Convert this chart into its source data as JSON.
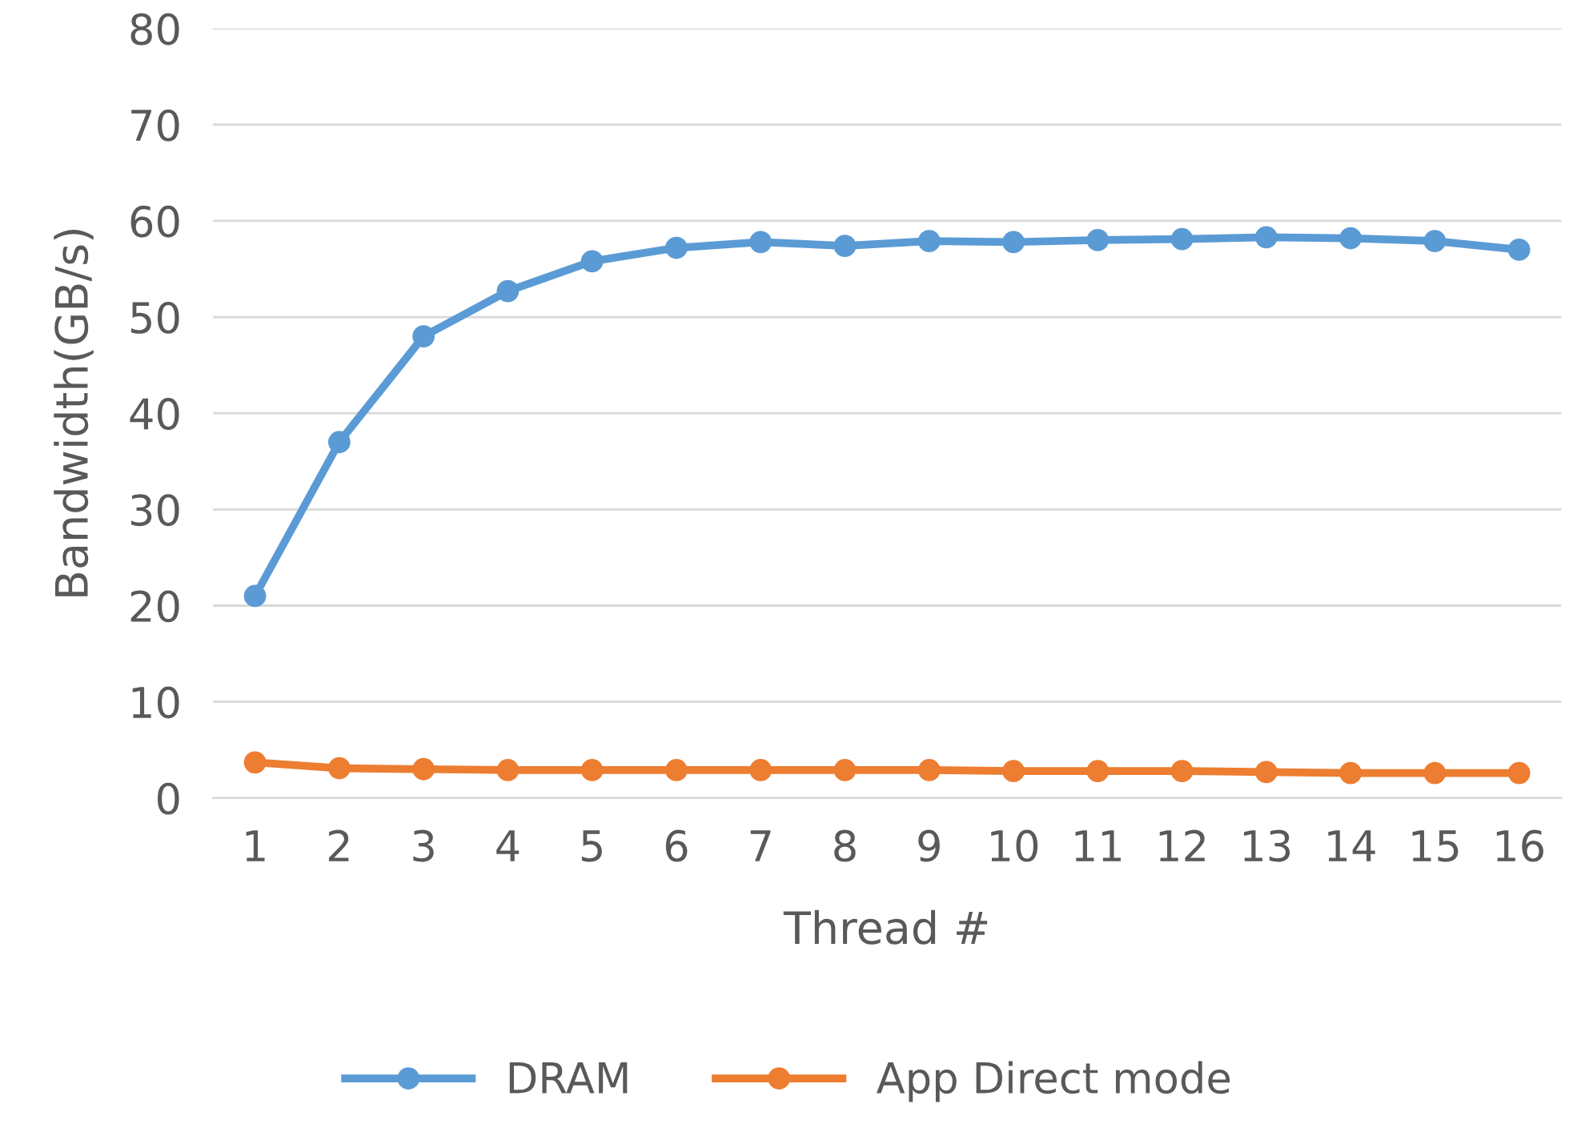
{
  "chart_data": {
    "type": "line",
    "xlabel": "Thread #",
    "ylabel": "Bandwidth(GB/s)",
    "categories": [
      "1",
      "2",
      "3",
      "4",
      "5",
      "6",
      "7",
      "8",
      "9",
      "10",
      "11",
      "12",
      "13",
      "14",
      "15",
      "16"
    ],
    "series": [
      {
        "name": "DRAM",
        "color": "#5b9bd5",
        "values": [
          21,
          37,
          48,
          52.7,
          55.8,
          57.2,
          57.8,
          57.4,
          57.9,
          57.8,
          58.0,
          58.1,
          58.3,
          58.2,
          57.9,
          57.0
        ]
      },
      {
        "name": "App Direct mode",
        "color": "#ed7d31",
        "values": [
          3.7,
          3.1,
          3.0,
          2.9,
          2.9,
          2.9,
          2.9,
          2.9,
          2.9,
          2.8,
          2.8,
          2.8,
          2.7,
          2.6,
          2.6,
          2.6
        ]
      }
    ],
    "ylim": [
      0,
      80
    ],
    "yticks": [
      0,
      10,
      20,
      30,
      40,
      50,
      60,
      70,
      80
    ],
    "grid": "y",
    "legend": "bottom",
    "marker": "circle",
    "line_style": "solid"
  }
}
